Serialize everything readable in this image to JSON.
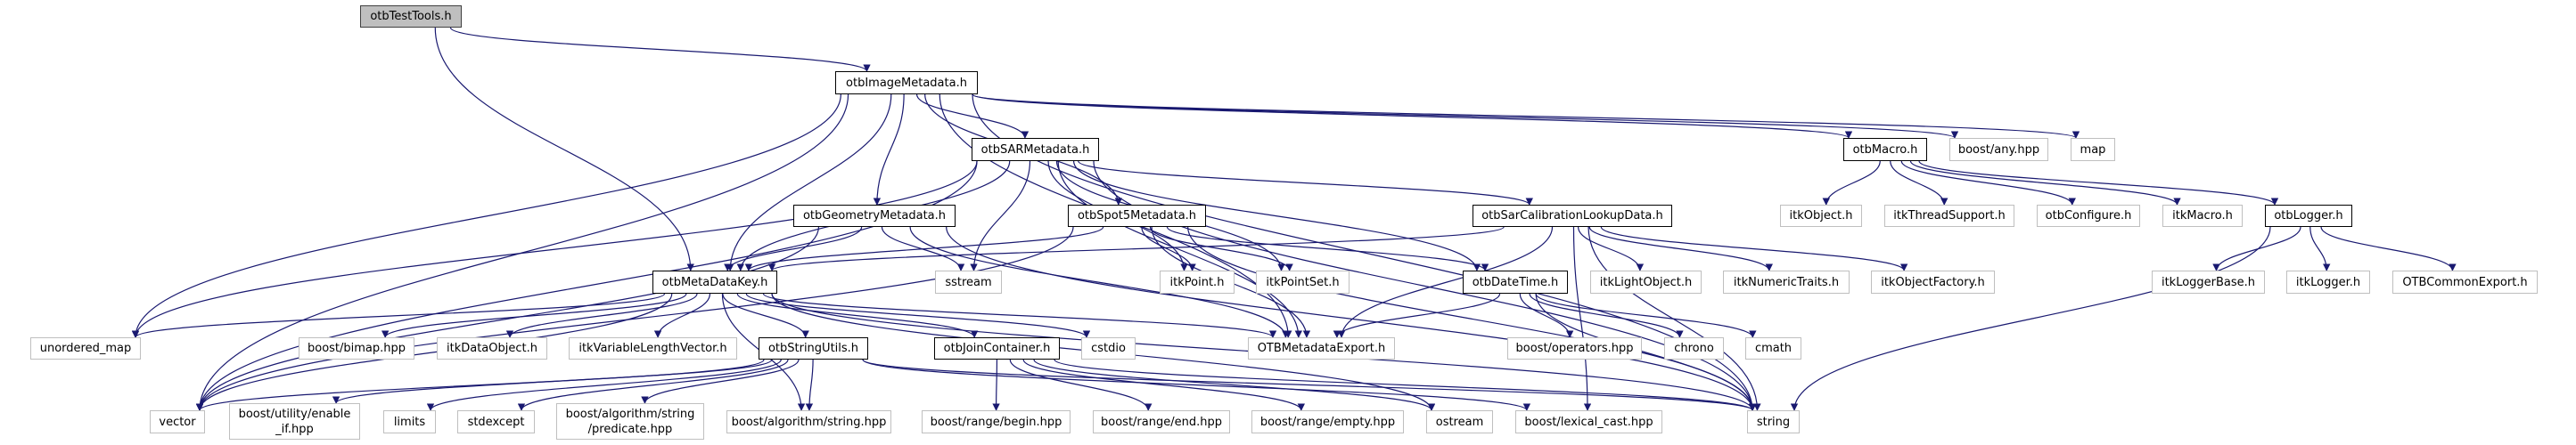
{
  "colors": {
    "edge": "#191970",
    "root_fill": "#bfbfbf",
    "external_border": "#bfbfbf",
    "internal_border": "#000000"
  },
  "nodes": [
    {
      "id": "testtools",
      "label": "otbTestTools.h",
      "kind": "root"
    },
    {
      "id": "imagemeta",
      "label": "otbImageMetadata.h",
      "kind": "internal"
    },
    {
      "id": "sarmeta",
      "label": "otbSARMetadata.h",
      "kind": "internal"
    },
    {
      "id": "macro",
      "label": "otbMacro.h",
      "kind": "internal"
    },
    {
      "id": "anyhpp",
      "label": "boost/any.hpp",
      "kind": "external"
    },
    {
      "id": "map",
      "label": "map",
      "kind": "external"
    },
    {
      "id": "geom",
      "label": "otbGeometryMetadata.h",
      "kind": "internal"
    },
    {
      "id": "spot5",
      "label": "otbSpot5Metadata.h",
      "kind": "internal"
    },
    {
      "id": "sarcal",
      "label": "otbSarCalibrationLookupData.h",
      "kind": "internal"
    },
    {
      "id": "itkobject",
      "label": "itkObject.h",
      "kind": "external"
    },
    {
      "id": "threadsupport",
      "label": "itkThreadSupport.h",
      "kind": "external"
    },
    {
      "id": "configure",
      "label": "otbConfigure.h",
      "kind": "external"
    },
    {
      "id": "itkmacro",
      "label": "itkMacro.h",
      "kind": "external"
    },
    {
      "id": "logger",
      "label": "otbLogger.h",
      "kind": "internal"
    },
    {
      "id": "metadatakey",
      "label": "otbMetaDataKey.h",
      "kind": "internal"
    },
    {
      "id": "sstream",
      "label": "sstream",
      "kind": "external"
    },
    {
      "id": "itkpoint",
      "label": "itkPoint.h",
      "kind": "external"
    },
    {
      "id": "itkpointset",
      "label": "itkPointSet.h",
      "kind": "external"
    },
    {
      "id": "datetime",
      "label": "otbDateTime.h",
      "kind": "internal"
    },
    {
      "id": "lightobject",
      "label": "itkLightObject.h",
      "kind": "external"
    },
    {
      "id": "numerictraits",
      "label": "itkNumericTraits.h",
      "kind": "external"
    },
    {
      "id": "objectfactory",
      "label": "itkObjectFactory.h",
      "kind": "external"
    },
    {
      "id": "loggerbase",
      "label": "itkLoggerBase.h",
      "kind": "external"
    },
    {
      "id": "itklogger",
      "label": "itkLogger.h",
      "kind": "external"
    },
    {
      "id": "commonexport",
      "label": "OTBCommonExport.h",
      "kind": "external"
    },
    {
      "id": "unordered_map",
      "label": "unordered_map",
      "kind": "external"
    },
    {
      "id": "bimap",
      "label": "boost/bimap.hpp",
      "kind": "external"
    },
    {
      "id": "dataobject",
      "label": "itkDataObject.h",
      "kind": "external"
    },
    {
      "id": "varlen",
      "label": "itkVariableLengthVector.h",
      "kind": "external"
    },
    {
      "id": "stringutils",
      "label": "otbStringUtils.h",
      "kind": "internal"
    },
    {
      "id": "joincontainer",
      "label": "otbJoinContainer.h",
      "kind": "internal"
    },
    {
      "id": "cstdio",
      "label": "cstdio",
      "kind": "external"
    },
    {
      "id": "metaexport",
      "label": "OTBMetadataExport.h",
      "kind": "external"
    },
    {
      "id": "operators",
      "label": "boost/operators.hpp",
      "kind": "external"
    },
    {
      "id": "chrono",
      "label": "chrono",
      "kind": "external"
    },
    {
      "id": "cmath",
      "label": "cmath",
      "kind": "external"
    },
    {
      "id": "vector",
      "label": "vector",
      "kind": "external"
    },
    {
      "id": "enableif",
      "label": "boost/utility/enable\n_if.hpp",
      "kind": "external"
    },
    {
      "id": "limits",
      "label": "limits",
      "kind": "external"
    },
    {
      "id": "stdexcept",
      "label": "stdexcept",
      "kind": "external"
    },
    {
      "id": "predicate",
      "label": "boost/algorithm/string\n/predicate.hpp",
      "kind": "external"
    },
    {
      "id": "algstring",
      "label": "boost/algorithm/string.hpp",
      "kind": "external"
    },
    {
      "id": "begin",
      "label": "boost/range/begin.hpp",
      "kind": "external"
    },
    {
      "id": "end",
      "label": "boost/range/end.hpp",
      "kind": "external"
    },
    {
      "id": "empty",
      "label": "boost/range/empty.hpp",
      "kind": "external"
    },
    {
      "id": "ostream",
      "label": "ostream",
      "kind": "external"
    },
    {
      "id": "lexcast",
      "label": "boost/lexical_cast.hpp",
      "kind": "external"
    },
    {
      "id": "string",
      "label": "string",
      "kind": "external"
    }
  ],
  "edges": [
    [
      "testtools",
      "imagemeta"
    ],
    [
      "testtools",
      "metadatakey"
    ],
    [
      "imagemeta",
      "geom"
    ],
    [
      "imagemeta",
      "sarmeta"
    ],
    [
      "imagemeta",
      "spot5"
    ],
    [
      "imagemeta",
      "metadatakey"
    ],
    [
      "imagemeta",
      "metaexport"
    ],
    [
      "imagemeta",
      "unordered_map"
    ],
    [
      "imagemeta",
      "vector"
    ],
    [
      "imagemeta",
      "macro"
    ],
    [
      "imagemeta",
      "anyhpp"
    ],
    [
      "imagemeta",
      "map"
    ],
    [
      "imagemeta",
      "string"
    ],
    [
      "sarmeta",
      "vector"
    ],
    [
      "sarmeta",
      "unordered_map"
    ],
    [
      "sarmeta",
      "metadatakey"
    ],
    [
      "sarmeta",
      "sstream"
    ],
    [
      "sarmeta",
      "metaexport"
    ],
    [
      "sarmeta",
      "itkpoint"
    ],
    [
      "sarmeta",
      "itkpointset"
    ],
    [
      "sarmeta",
      "datetime"
    ],
    [
      "sarmeta",
      "sarcal"
    ],
    [
      "sarmeta",
      "string"
    ],
    [
      "geom",
      "metadatakey"
    ],
    [
      "geom",
      "vector"
    ],
    [
      "geom",
      "sstream"
    ],
    [
      "geom",
      "metaexport"
    ],
    [
      "geom",
      "string"
    ],
    [
      "spot5",
      "metadatakey"
    ],
    [
      "spot5",
      "itkpoint"
    ],
    [
      "spot5",
      "itkpointset"
    ],
    [
      "spot5",
      "datetime"
    ],
    [
      "spot5",
      "metaexport"
    ],
    [
      "spot5",
      "string"
    ],
    [
      "spot5",
      "vector"
    ],
    [
      "sarcal",
      "metadatakey"
    ],
    [
      "sarcal",
      "lightobject"
    ],
    [
      "sarcal",
      "numerictraits"
    ],
    [
      "sarcal",
      "objectfactory"
    ],
    [
      "sarcal",
      "metaexport"
    ],
    [
      "sarcal",
      "lexcast"
    ],
    [
      "sarcal",
      "string"
    ],
    [
      "metadatakey",
      "unordered_map"
    ],
    [
      "metadatakey",
      "vector"
    ],
    [
      "metadatakey",
      "bimap"
    ],
    [
      "metadatakey",
      "dataobject"
    ],
    [
      "metadatakey",
      "varlen"
    ],
    [
      "metadatakey",
      "stringutils"
    ],
    [
      "metadatakey",
      "joincontainer"
    ],
    [
      "metadatakey",
      "cstdio"
    ],
    [
      "metadatakey",
      "metaexport"
    ],
    [
      "metadatakey",
      "string"
    ],
    [
      "metadatakey",
      "algstring"
    ],
    [
      "metadatakey",
      "ostream"
    ],
    [
      "stringutils",
      "vector"
    ],
    [
      "stringutils",
      "enableif"
    ],
    [
      "stringutils",
      "limits"
    ],
    [
      "stringutils",
      "stdexcept"
    ],
    [
      "stringutils",
      "predicate"
    ],
    [
      "stringutils",
      "algstring"
    ],
    [
      "stringutils",
      "string"
    ],
    [
      "stringutils",
      "lexcast"
    ],
    [
      "joincontainer",
      "begin"
    ],
    [
      "joincontainer",
      "end"
    ],
    [
      "joincontainer",
      "empty"
    ],
    [
      "joincontainer",
      "ostream"
    ],
    [
      "joincontainer",
      "string"
    ],
    [
      "datetime",
      "metaexport"
    ],
    [
      "datetime",
      "operators"
    ],
    [
      "datetime",
      "chrono"
    ],
    [
      "datetime",
      "cmath"
    ],
    [
      "datetime",
      "string"
    ],
    [
      "macro",
      "itkobject"
    ],
    [
      "macro",
      "threadsupport"
    ],
    [
      "macro",
      "configure"
    ],
    [
      "macro",
      "itkmacro"
    ],
    [
      "macro",
      "logger"
    ],
    [
      "logger",
      "loggerbase"
    ],
    [
      "logger",
      "itklogger"
    ],
    [
      "logger",
      "commonexport"
    ],
    [
      "logger",
      "string"
    ]
  ]
}
